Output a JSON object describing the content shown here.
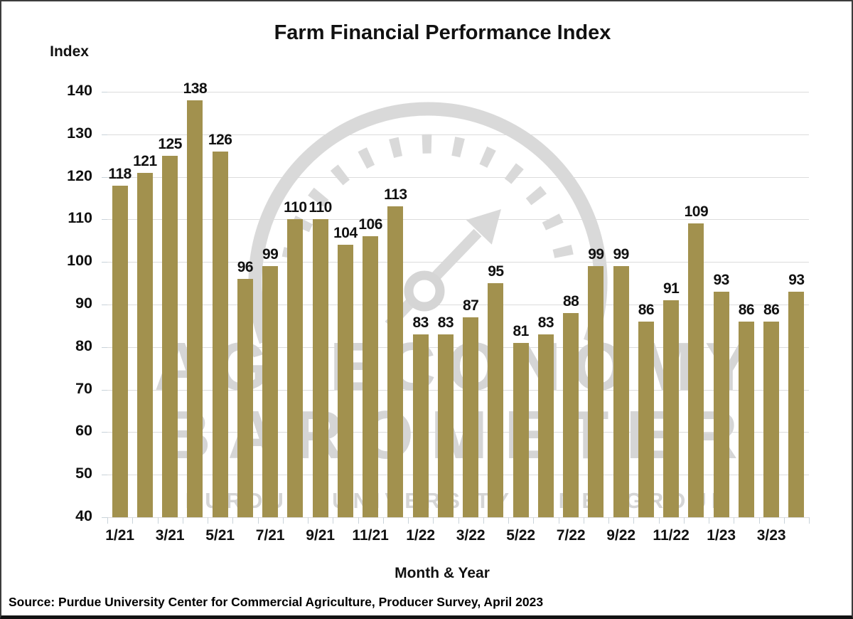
{
  "source": "Source: Purdue University Center for Commercial Agriculture, Producer Survey, April 2023",
  "watermark": {
    "line1": "AG ECONOMY",
    "line2": "BAROMETER",
    "line3": "PURDUE UNIVERSITY  CME GROUP",
    "color": "#d5d5d5"
  },
  "colors": {
    "bar": "#a2914e",
    "grid": "#dcdcdc",
    "axis_text": "#111111",
    "tick": "#c9d3da"
  },
  "chart_data": {
    "type": "bar",
    "title": "Farm Financial Performance Index",
    "xlabel": "Month & Year",
    "ylabel": "Index",
    "categories": [
      "1/21",
      "2/21",
      "3/21",
      "4/21",
      "5/21",
      "6/21",
      "7/21",
      "8/21",
      "9/21",
      "10/21",
      "11/21",
      "12/21",
      "1/22",
      "2/22",
      "3/22",
      "4/22",
      "5/22",
      "6/22",
      "7/22",
      "8/22",
      "9/22",
      "10/22",
      "11/22",
      "12/22",
      "1/23",
      "2/23",
      "3/23",
      "4/23"
    ],
    "values": [
      118,
      121,
      125,
      138,
      126,
      96,
      99,
      110,
      110,
      104,
      106,
      113,
      83,
      83,
      87,
      95,
      81,
      83,
      88,
      99,
      99,
      86,
      91,
      109,
      93,
      86,
      86,
      93
    ],
    "x_tick_labels": [
      "1/21",
      "3/21",
      "5/21",
      "7/21",
      "9/21",
      "11/21",
      "1/22",
      "3/22",
      "5/22",
      "7/22",
      "9/22",
      "11/22",
      "1/23",
      "3/23"
    ],
    "x_tick_every": 2,
    "y_ticks": [
      40,
      50,
      60,
      70,
      80,
      90,
      100,
      110,
      120,
      130,
      140
    ],
    "ylim": [
      40,
      140
    ],
    "grid": true,
    "legend": false,
    "value_labels": true,
    "bar_color": "#a2914e"
  }
}
